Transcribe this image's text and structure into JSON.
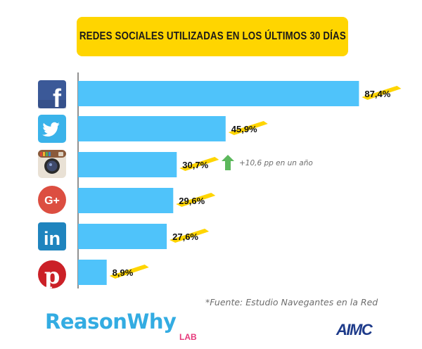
{
  "title": "REDES SOCIALES UTILIZADAS EN LOS ÚLTIMOS 30 DÍAS",
  "chart_data": {
    "type": "bar",
    "orientation": "horizontal",
    "categories": [
      "Facebook",
      "Twitter",
      "Instagram",
      "Google+",
      "LinkedIn",
      "Pinterest"
    ],
    "values": [
      87.4,
      45.9,
      30.7,
      29.6,
      27.6,
      8.9
    ],
    "value_labels": [
      "87,4%",
      "45,9%",
      "30,7%",
      "29,6%",
      "27,6%",
      "8,9%"
    ],
    "unit": "%",
    "xlim": [
      0,
      100
    ],
    "grid": false,
    "legend": "none",
    "bar_color": "#4fc3fa",
    "label_highlight_color": "#ffd500",
    "annotations": [
      {
        "category": "Instagram",
        "icon": "up-arrow-icon",
        "color": "#5cb85c",
        "text": "+10,6 pp en un año"
      }
    ],
    "icons": [
      "facebook-icon",
      "twitter-icon",
      "instagram-icon",
      "google-plus-icon",
      "linkedin-icon",
      "pinterest-icon"
    ]
  },
  "source": "*Fuente: Estudio Navegantes en la Red",
  "brand": {
    "name": "ReasonWhy",
    "sub": "LAB",
    "color": "#33ace2",
    "sub_color": "#e6397b"
  },
  "partner_logo": "AIMC"
}
